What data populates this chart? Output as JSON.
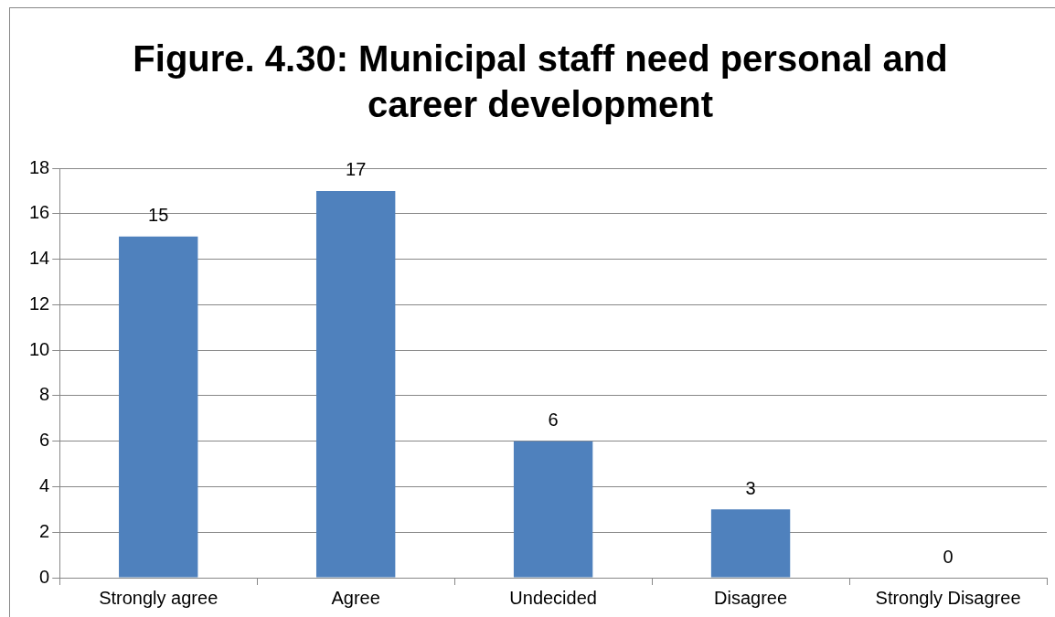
{
  "chart_data": {
    "type": "bar",
    "title": "Figure. 4.30: Municipal staff need personal and career development",
    "categories": [
      "Strongly agree",
      "Agree",
      "Undecided",
      "Disagree",
      "Strongly Disagree"
    ],
    "values": [
      15,
      17,
      6,
      3,
      0
    ],
    "color": "#4f81bd",
    "ylim": [
      0,
      18
    ],
    "yticks": [
      0,
      2,
      4,
      6,
      8,
      10,
      12,
      14,
      16,
      18
    ],
    "grid": "y",
    "data_labels": true
  }
}
